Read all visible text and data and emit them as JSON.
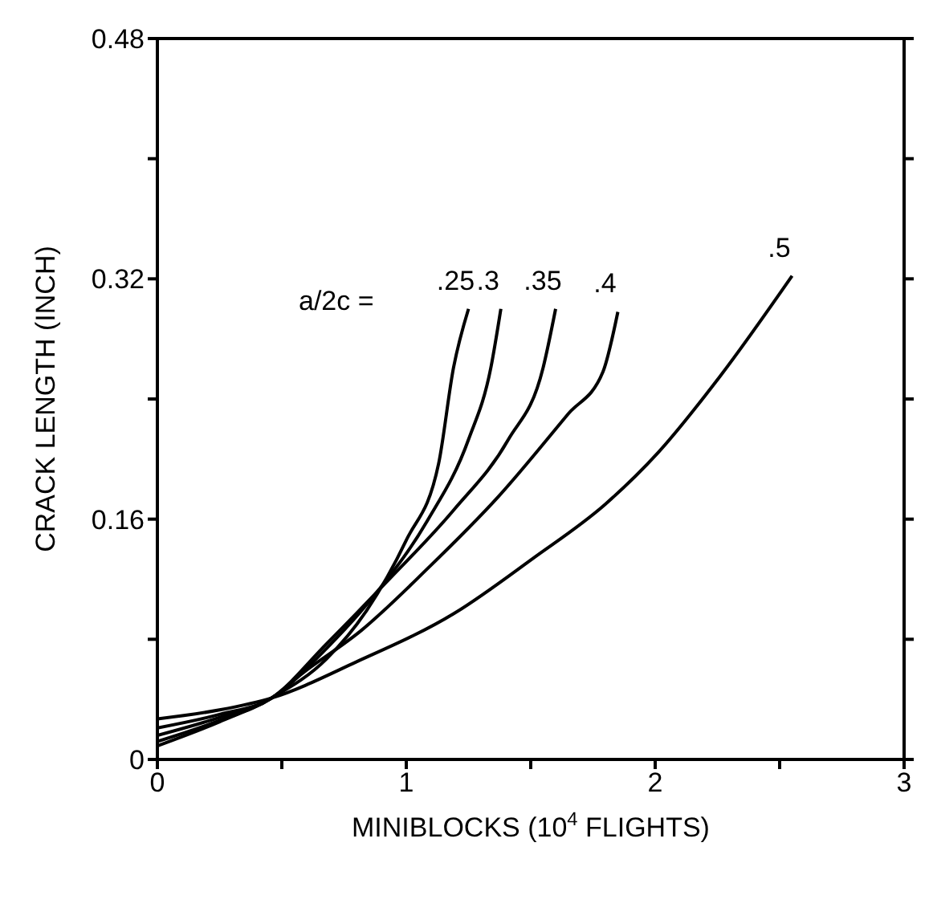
{
  "chart_data": {
    "type": "line",
    "xlabel": "MINIBLOCKS (10$^{4}$ FLIGHTS)",
    "ylabel": "CRACK LENGTH (INCH)",
    "annotations": [
      "a/2c ="
    ],
    "xlim": [
      0,
      3
    ],
    "xticks": [
      0,
      {
        "value": 0.5,
        "label": null
      },
      1,
      {
        "value": 1.5,
        "label": null
      },
      2,
      {
        "value": 2.5,
        "label": null
      },
      3
    ],
    "ylim": [
      0,
      0.48
    ],
    "yticks": [
      0,
      {
        "value": 0.08,
        "label": null
      },
      0.16,
      {
        "value": 0.24,
        "label": null
      },
      0.32,
      {
        "value": 0.4,
        "label": null
      },
      0.48
    ],
    "marker": "none",
    "line_style": "solid",
    "series": [
      {
        "name": ".25",
        "color": "#000000",
        "x": [
          0,
          0.25,
          0.46,
          0.68,
          0.84,
          1.0,
          1.13,
          1.19,
          1.25
        ],
        "values": [
          0.009,
          0.025,
          0.041,
          0.067,
          0.099,
          0.146,
          0.197,
          0.261,
          0.3
        ]
      },
      {
        "name": ".3",
        "color": "#000000",
        "x": [
          0,
          0.25,
          0.46,
          0.68,
          0.88,
          1.085,
          1.25,
          1.34,
          1.38
        ],
        "values": [
          0.012,
          0.026,
          0.041,
          0.074,
          0.111,
          0.159,
          0.213,
          0.261,
          0.3
        ]
      },
      {
        "name": ".35",
        "color": "#000000",
        "x": [
          0,
          0.25,
          0.46,
          0.68,
          0.92,
          1.19,
          1.41,
          1.55,
          1.6
        ],
        "values": [
          0.016,
          0.028,
          0.041,
          0.077,
          0.118,
          0.166,
          0.213,
          0.261,
          0.3
        ]
      },
      {
        "name": ".4",
        "color": "#000000",
        "x": [
          0,
          0.25,
          0.46,
          0.58,
          0.82,
          1.085,
          1.37,
          1.65,
          1.79,
          1.85
        ],
        "values": [
          0.021,
          0.03,
          0.041,
          0.057,
          0.086,
          0.127,
          0.175,
          0.23,
          0.258,
          0.298
        ]
      },
      {
        "name": ".5",
        "color": "#000000",
        "x": [
          0,
          0.25,
          0.46,
          0.8,
          1.19,
          1.51,
          1.8,
          2.01,
          2.26,
          2.55
        ],
        "values": [
          0.027,
          0.033,
          0.041,
          0.065,
          0.097,
          0.134,
          0.17,
          0.204,
          0.255,
          0.322
        ]
      }
    ]
  }
}
